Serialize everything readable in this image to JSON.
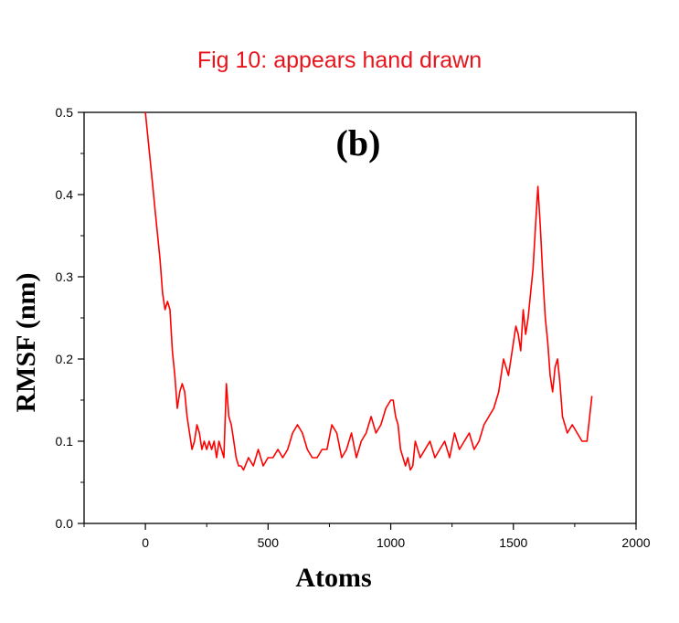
{
  "caption": "Fig 10: appears hand drawn",
  "chart_data": {
    "type": "line",
    "title": "(b)",
    "xlabel": "Atoms",
    "ylabel": "RMSF (nm)",
    "xlim": [
      -250,
      2000
    ],
    "ylim": [
      0.0,
      0.5
    ],
    "xticks": [
      0,
      500,
      1000,
      1500,
      2000
    ],
    "yticks": [
      0.0,
      0.1,
      0.2,
      0.3,
      0.4,
      0.5
    ],
    "ytick_labels": [
      "0.0",
      "0.1",
      "0.2",
      "0.3",
      "0.4",
      "0.5"
    ],
    "grid": false,
    "series": [
      {
        "color": "#ff0000",
        "x": [
          0,
          10,
          20,
          30,
          40,
          50,
          60,
          70,
          80,
          90,
          100,
          110,
          120,
          130,
          140,
          150,
          160,
          170,
          180,
          190,
          200,
          210,
          220,
          230,
          240,
          250,
          260,
          270,
          280,
          290,
          300,
          310,
          320,
          330,
          340,
          350,
          360,
          370,
          380,
          390,
          400,
          420,
          440,
          460,
          480,
          500,
          520,
          540,
          560,
          580,
          600,
          620,
          640,
          660,
          680,
          700,
          720,
          740,
          760,
          780,
          800,
          820,
          840,
          860,
          880,
          900,
          920,
          940,
          960,
          980,
          1000,
          1010,
          1020,
          1030,
          1040,
          1050,
          1060,
          1070,
          1080,
          1090,
          1100,
          1120,
          1140,
          1160,
          1180,
          1200,
          1220,
          1240,
          1260,
          1280,
          1300,
          1320,
          1340,
          1360,
          1380,
          1400,
          1420,
          1440,
          1460,
          1480,
          1500,
          1510,
          1520,
          1530,
          1540,
          1550,
          1560,
          1570,
          1580,
          1590,
          1600,
          1610,
          1620,
          1630,
          1640,
          1650,
          1660,
          1670,
          1680,
          1690,
          1700,
          1720,
          1740,
          1760,
          1780,
          1800,
          1820
        ],
        "y": [
          0.5,
          0.47,
          0.44,
          0.41,
          0.38,
          0.35,
          0.32,
          0.28,
          0.26,
          0.27,
          0.26,
          0.21,
          0.18,
          0.14,
          0.16,
          0.17,
          0.16,
          0.13,
          0.11,
          0.09,
          0.1,
          0.12,
          0.11,
          0.09,
          0.1,
          0.09,
          0.1,
          0.09,
          0.1,
          0.08,
          0.1,
          0.09,
          0.08,
          0.17,
          0.13,
          0.12,
          0.1,
          0.08,
          0.07,
          0.07,
          0.065,
          0.08,
          0.07,
          0.09,
          0.07,
          0.08,
          0.08,
          0.09,
          0.08,
          0.09,
          0.11,
          0.12,
          0.11,
          0.09,
          0.08,
          0.08,
          0.09,
          0.09,
          0.12,
          0.11,
          0.08,
          0.09,
          0.11,
          0.08,
          0.1,
          0.11,
          0.13,
          0.11,
          0.12,
          0.14,
          0.15,
          0.15,
          0.13,
          0.12,
          0.09,
          0.08,
          0.07,
          0.08,
          0.065,
          0.07,
          0.1,
          0.08,
          0.09,
          0.1,
          0.08,
          0.09,
          0.1,
          0.08,
          0.11,
          0.09,
          0.1,
          0.11,
          0.09,
          0.1,
          0.12,
          0.13,
          0.14,
          0.16,
          0.2,
          0.18,
          0.22,
          0.24,
          0.23,
          0.21,
          0.26,
          0.23,
          0.25,
          0.28,
          0.31,
          0.36,
          0.41,
          0.36,
          0.3,
          0.25,
          0.22,
          0.18,
          0.16,
          0.19,
          0.2,
          0.17,
          0.13,
          0.11,
          0.12,
          0.11,
          0.1,
          0.1,
          0.155
        ]
      }
    ]
  }
}
